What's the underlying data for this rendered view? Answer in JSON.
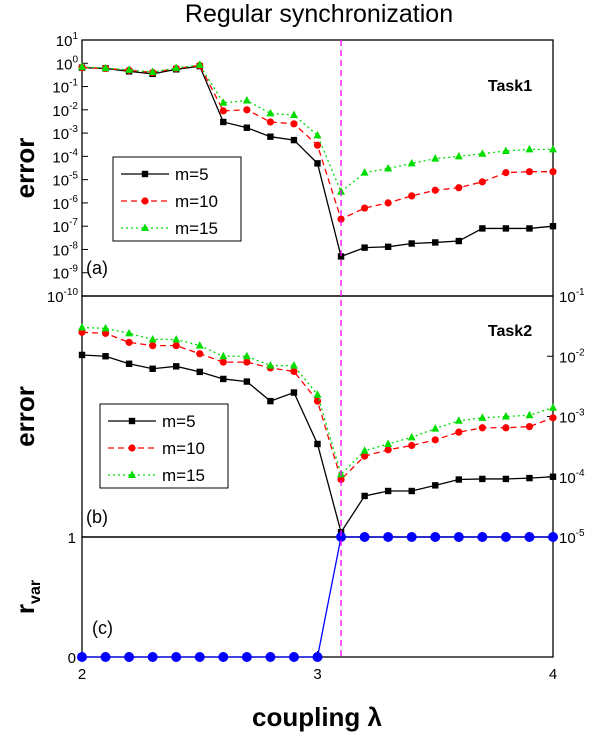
{
  "title": "Regular synchronization",
  "xlabel": "coupling λ",
  "colors": {
    "m5": "#000000",
    "m10": "#ff0000",
    "m15": "#00dd00",
    "rvar": "#0000ff",
    "vline": "#ff00ff"
  },
  "chart_data": [
    {
      "type": "line",
      "panel_label": "(a)",
      "annotation": "Task1",
      "ylabel": "error",
      "yscale": "log",
      "ylim": [
        1e-10,
        10
      ],
      "xlim": [
        2,
        4
      ],
      "y_ticks": [
        {
          "base": "10",
          "exp": "1"
        },
        {
          "base": "10",
          "exp": "0"
        },
        {
          "base": "10",
          "exp": "-1"
        },
        {
          "base": "10",
          "exp": "-2"
        },
        {
          "base": "10",
          "exp": "-3"
        },
        {
          "base": "10",
          "exp": "-4"
        },
        {
          "base": "10",
          "exp": "-5"
        },
        {
          "base": "10",
          "exp": "-6"
        },
        {
          "base": "10",
          "exp": "-7"
        },
        {
          "base": "10",
          "exp": "-8"
        },
        {
          "base": "10",
          "exp": "-9"
        },
        {
          "base": "10",
          "exp": "-10"
        }
      ],
      "x": [
        2.0,
        2.1,
        2.2,
        2.3,
        2.4,
        2.5,
        2.6,
        2.7,
        2.8,
        2.9,
        3.0,
        3.1,
        3.2,
        3.3,
        3.4,
        3.5,
        3.6,
        3.7,
        3.8,
        3.9,
        4.0
      ],
      "series": [
        {
          "name": "m=5",
          "values": [
            0.65,
            0.6,
            0.45,
            0.35,
            0.55,
            0.75,
            0.003,
            0.0017,
            0.0007,
            0.0005,
            5e-05,
            5e-09,
            1.2e-08,
            1.3e-08,
            1.8e-08,
            2e-08,
            2.3e-08,
            8e-08,
            8e-08,
            8e-08,
            1e-07
          ]
        },
        {
          "name": "m=10",
          "values": [
            0.65,
            0.6,
            0.5,
            0.4,
            0.6,
            0.8,
            0.009,
            0.01,
            0.003,
            0.0025,
            0.0003,
            2e-07,
            6e-07,
            1e-06,
            2e-06,
            3.5e-06,
            4.5e-06,
            8e-06,
            2e-05,
            2.2e-05,
            2.2e-05
          ]
        },
        {
          "name": "m=15",
          "values": [
            0.7,
            0.62,
            0.52,
            0.42,
            0.62,
            0.85,
            0.02,
            0.025,
            0.007,
            0.006,
            0.0008,
            3e-06,
            2e-05,
            3e-05,
            5e-05,
            8e-05,
            0.0001,
            0.00013,
            0.00017,
            0.0002,
            0.0002
          ]
        }
      ],
      "legend": [
        "m=5",
        "m=10",
        "m=15"
      ],
      "vline_x": 3.1
    },
    {
      "type": "line",
      "panel_label": "(b)",
      "annotation": "Task2",
      "ylabel": "error",
      "yscale": "log",
      "y_axis_side": "right",
      "ylim": [
        1e-05,
        0.1
      ],
      "xlim": [
        2,
        4
      ],
      "y_ticks": [
        {
          "base": "10",
          "exp": "-1"
        },
        {
          "base": "10",
          "exp": "-2"
        },
        {
          "base": "10",
          "exp": "-3"
        },
        {
          "base": "10",
          "exp": "-4"
        },
        {
          "base": "10",
          "exp": "-5"
        }
      ],
      "x": [
        2.0,
        2.1,
        2.2,
        2.3,
        2.4,
        2.5,
        2.6,
        2.7,
        2.8,
        2.9,
        3.0,
        3.1,
        3.2,
        3.3,
        3.4,
        3.5,
        3.6,
        3.7,
        3.8,
        3.9,
        4.0
      ],
      "series": [
        {
          "name": "m=5",
          "values": [
            0.0105,
            0.01,
            0.0075,
            0.0062,
            0.0068,
            0.0055,
            0.0042,
            0.0038,
            0.0018,
            0.0025,
            0.00035,
            1.2e-05,
            4.8e-05,
            5.8e-05,
            5.8e-05,
            7.2e-05,
            9e-05,
            9.2e-05,
            9.2e-05,
            9.5e-05,
            0.0001
          ]
        },
        {
          "name": "m=10",
          "values": [
            0.025,
            0.024,
            0.017,
            0.015,
            0.015,
            0.011,
            0.008,
            0.008,
            0.0064,
            0.0056,
            0.0018,
            9e-05,
            0.00022,
            0.00028,
            0.00033,
            0.00041,
            0.00055,
            0.00065,
            0.00065,
            0.00068,
            0.00095
          ]
        },
        {
          "name": "m=15",
          "values": [
            0.03,
            0.029,
            0.024,
            0.019,
            0.019,
            0.015,
            0.01,
            0.01,
            0.007,
            0.007,
            0.0023,
            0.00011,
            0.00027,
            0.00035,
            0.00045,
            0.00063,
            0.00085,
            0.00095,
            0.001,
            0.00105,
            0.0014
          ]
        }
      ],
      "legend": [
        "m=5",
        "m=10",
        "m=15"
      ],
      "vline_x": 3.1
    },
    {
      "type": "line",
      "panel_label": "(c)",
      "ylabel_main": "r",
      "ylabel_sub": "var",
      "ylim": [
        0,
        1
      ],
      "xlim": [
        2,
        4
      ],
      "y_ticks": [
        "0",
        "1"
      ],
      "x_ticks": [
        "2",
        "3",
        "4"
      ],
      "x": [
        2.0,
        2.1,
        2.2,
        2.3,
        2.4,
        2.5,
        2.6,
        2.7,
        2.8,
        2.9,
        3.0,
        3.1,
        3.2,
        3.3,
        3.4,
        3.5,
        3.6,
        3.7,
        3.8,
        3.9,
        4.0
      ],
      "series": [
        {
          "values": [
            0,
            0,
            0,
            0,
            0,
            0,
            0,
            0,
            0,
            0,
            0,
            1,
            1,
            1,
            1,
            1,
            1,
            1,
            1,
            1,
            1
          ]
        }
      ],
      "vline_x": 3.1
    }
  ]
}
